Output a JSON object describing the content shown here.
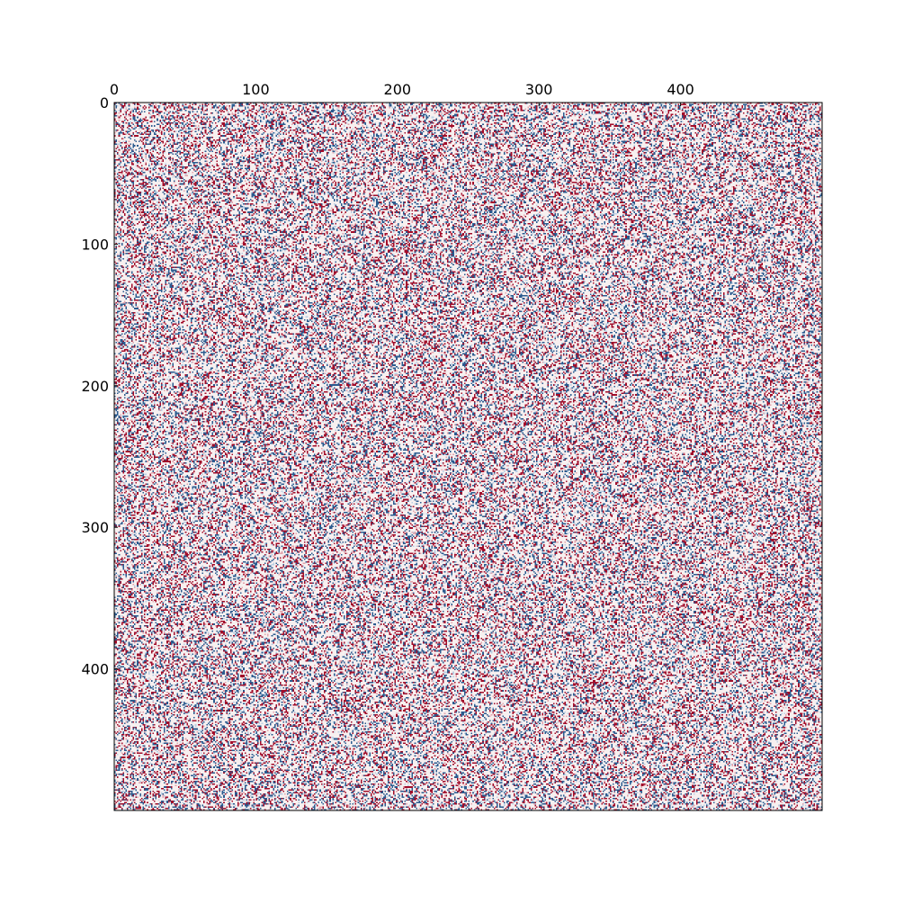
{
  "chart_data": {
    "type": "heatmap",
    "title": "",
    "xlabel": "",
    "ylabel": "",
    "rows": 500,
    "cols": 500,
    "xlim": [
      0,
      500
    ],
    "ylim": [
      500,
      0
    ],
    "x_ticks": [
      0,
      100,
      200,
      300,
      400
    ],
    "y_ticks": [
      0,
      100,
      200,
      300,
      400
    ],
    "x_tick_labels": [
      "0",
      "100",
      "200",
      "300",
      "400"
    ],
    "y_tick_labels": [
      "0",
      "100",
      "200",
      "300",
      "400"
    ],
    "x_axis_position": "top",
    "y_axis_position": "left",
    "value_levels": [
      -1,
      0,
      1
    ],
    "colors": {
      "negative": "#2b5b8f",
      "zero": "#f7f0f0",
      "positive": "#a10d2a",
      "light_negative": "#b9cfe4",
      "light_positive": "#e3a4ad"
    },
    "approximate_fraction": {
      "negative": 0.2,
      "zero": 0.6,
      "positive": 0.2
    },
    "grid": false,
    "legend": "none",
    "colorbar": false
  }
}
